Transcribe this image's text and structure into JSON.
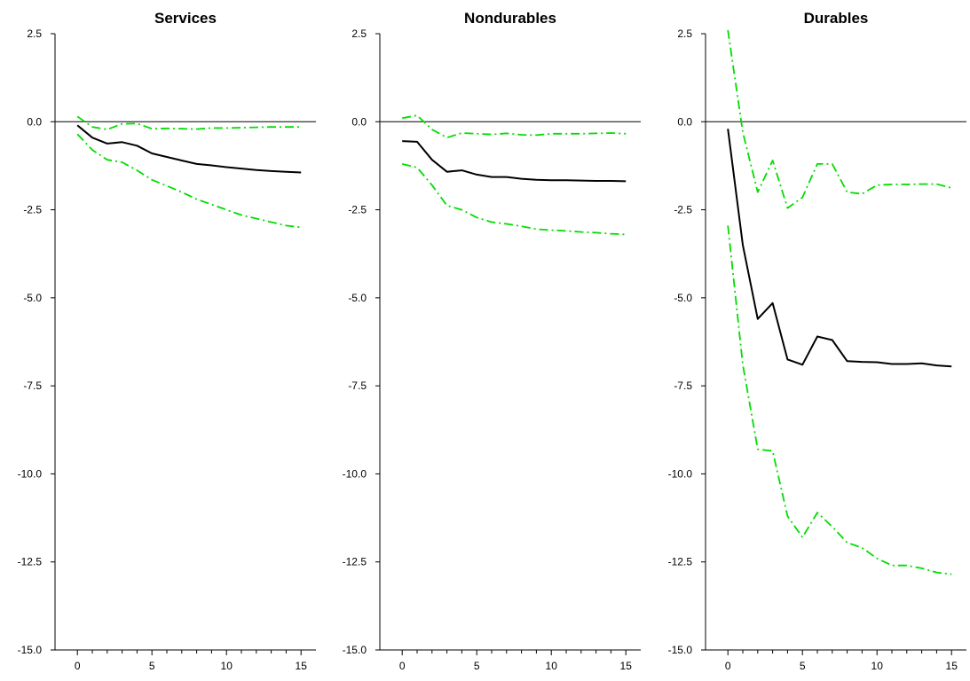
{
  "chart_data": [
    {
      "type": "line",
      "title": "Services",
      "x": [
        0,
        1,
        2,
        3,
        4,
        5,
        6,
        7,
        8,
        9,
        10,
        11,
        12,
        13,
        14,
        15
      ],
      "xlim": [
        -1.5,
        16.0
      ],
      "ylim": [
        -15.0,
        2.5
      ],
      "xticks": [
        0,
        5,
        10,
        15
      ],
      "yticks": [
        2.5,
        0.0,
        -2.5,
        -5.0,
        -7.5,
        -10.0,
        -12.5,
        -15.0
      ],
      "ytick_labels": [
        "2.5",
        "0.0",
        "-2.5",
        "-5.0",
        "-7.5",
        "-10.0",
        "-12.5",
        "-15.0"
      ],
      "zero_line": true,
      "series": [
        {
          "role": "estimate",
          "style": "solid",
          "color": "#000000",
          "values": [
            -0.1,
            -0.45,
            -0.62,
            -0.58,
            -0.68,
            -0.9,
            -1.0,
            -1.1,
            -1.2,
            -1.24,
            -1.29,
            -1.33,
            -1.37,
            -1.4,
            -1.42,
            -1.44
          ]
        },
        {
          "role": "upper-band",
          "style": "dash-dot",
          "color": "#00dd00",
          "values": [
            0.15,
            -0.15,
            -0.22,
            -0.06,
            -0.05,
            -0.2,
            -0.19,
            -0.2,
            -0.21,
            -0.18,
            -0.18,
            -0.17,
            -0.16,
            -0.15,
            -0.15,
            -0.15
          ]
        },
        {
          "role": "lower-band",
          "style": "dash-dot",
          "color": "#00dd00",
          "values": [
            -0.35,
            -0.8,
            -1.08,
            -1.15,
            -1.38,
            -1.65,
            -1.82,
            -2.0,
            -2.2,
            -2.35,
            -2.5,
            -2.65,
            -2.75,
            -2.85,
            -2.95,
            -3.0
          ]
        }
      ]
    },
    {
      "type": "line",
      "title": "Nondurables",
      "x": [
        0,
        1,
        2,
        3,
        4,
        5,
        6,
        7,
        8,
        9,
        10,
        11,
        12,
        13,
        14,
        15
      ],
      "xlim": [
        -1.5,
        16.0
      ],
      "ylim": [
        -15.0,
        2.5
      ],
      "xticks": [
        0,
        5,
        10,
        15
      ],
      "yticks": [
        2.5,
        0.0,
        -2.5,
        -5.0,
        -7.5,
        -10.0,
        -12.5,
        -15.0
      ],
      "ytick_labels": [
        "2.5",
        "0.0",
        "-2.5",
        "-5.0",
        "-7.5",
        "-10.0",
        "-12.5",
        "-15.0"
      ],
      "zero_line": true,
      "series": [
        {
          "role": "estimate",
          "style": "solid",
          "color": "#000000",
          "values": [
            -0.55,
            -0.57,
            -1.08,
            -1.42,
            -1.38,
            -1.5,
            -1.57,
            -1.57,
            -1.62,
            -1.65,
            -1.66,
            -1.66,
            -1.67,
            -1.68,
            -1.68,
            -1.69
          ]
        },
        {
          "role": "upper-band",
          "style": "dash-dot",
          "color": "#00dd00",
          "values": [
            0.1,
            0.18,
            -0.22,
            -0.45,
            -0.32,
            -0.34,
            -0.36,
            -0.33,
            -0.37,
            -0.38,
            -0.34,
            -0.34,
            -0.34,
            -0.33,
            -0.32,
            -0.34
          ]
        },
        {
          "role": "lower-band",
          "style": "dash-dot",
          "color": "#00dd00",
          "values": [
            -1.2,
            -1.3,
            -1.8,
            -2.38,
            -2.5,
            -2.72,
            -2.85,
            -2.9,
            -2.97,
            -3.05,
            -3.08,
            -3.1,
            -3.13,
            -3.15,
            -3.18,
            -3.2
          ]
        }
      ]
    },
    {
      "type": "line",
      "title": "Durables",
      "x": [
        0,
        1,
        2,
        3,
        4,
        5,
        6,
        7,
        8,
        9,
        10,
        11,
        12,
        13,
        14,
        15
      ],
      "xlim": [
        -1.5,
        16.0
      ],
      "ylim": [
        -15.0,
        2.5
      ],
      "xticks": [
        0,
        5,
        10,
        15
      ],
      "yticks": [
        2.5,
        0.0,
        -2.5,
        -5.0,
        -7.5,
        -10.0,
        -12.5,
        -15.0
      ],
      "ytick_labels": [
        "2.5",
        "0.0",
        "-2.5",
        "-5.0",
        "-7.5",
        "-10.0",
        "-12.5",
        "-15.0"
      ],
      "zero_line": true,
      "series": [
        {
          "role": "estimate",
          "style": "solid",
          "color": "#000000",
          "values": [
            -0.2,
            -3.5,
            -5.6,
            -5.15,
            -6.75,
            -6.9,
            -6.1,
            -6.2,
            -6.8,
            -6.82,
            -6.83,
            -6.88,
            -6.88,
            -6.86,
            -6.92,
            -6.95
          ]
        },
        {
          "role": "upper-band",
          "style": "dash-dot",
          "color": "#00dd00",
          "values": [
            2.6,
            -0.3,
            -2.0,
            -1.1,
            -2.45,
            -2.15,
            -1.2,
            -1.2,
            -2.0,
            -2.05,
            -1.8,
            -1.78,
            -1.78,
            -1.77,
            -1.77,
            -1.88
          ]
        },
        {
          "role": "lower-band",
          "style": "dash-dot",
          "color": "#00dd00",
          "values": [
            -2.95,
            -6.9,
            -9.3,
            -9.35,
            -11.2,
            -11.8,
            -11.1,
            -11.5,
            -11.95,
            -12.1,
            -12.4,
            -12.6,
            -12.6,
            -12.68,
            -12.8,
            -12.85
          ]
        }
      ]
    }
  ]
}
